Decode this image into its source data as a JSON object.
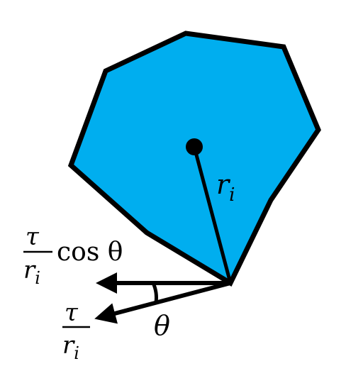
{
  "diagram": {
    "fill_color": "#00aeef",
    "stroke_color": "#000000",
    "labels": {
      "radius": {
        "base": "r",
        "sub": "i"
      },
      "angle": "θ",
      "projected_force": {
        "numerator": "τ",
        "denominator_base": "r",
        "denominator_sub": "i",
        "suffix": "cos θ"
      },
      "force": {
        "numerator": "τ",
        "denominator_base": "r",
        "denominator_sub": "i"
      }
    }
  }
}
